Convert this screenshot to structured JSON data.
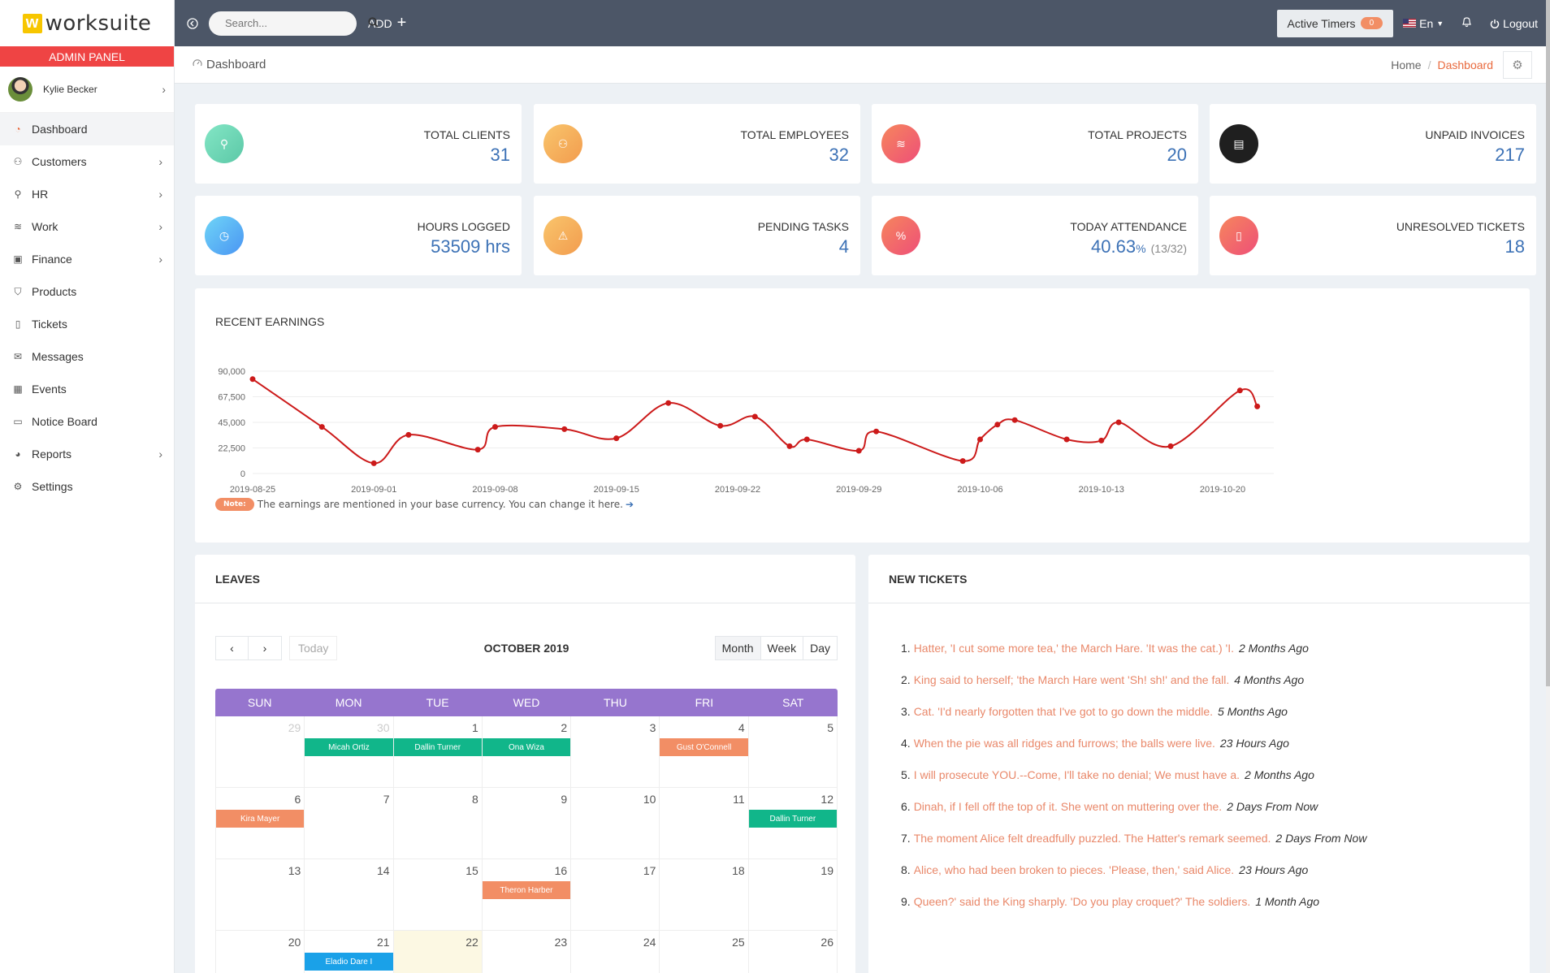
{
  "brand": {
    "logo_mark": "w",
    "name": "worksuite",
    "panel_label": "ADMIN PANEL"
  },
  "user": {
    "name": "Kylie Becker"
  },
  "sidebar": {
    "items": [
      {
        "label": "Dashboard",
        "icon": "speedometer-icon",
        "active": true,
        "has_children": false
      },
      {
        "label": "Customers",
        "icon": "users-icon",
        "has_children": true
      },
      {
        "label": "HR",
        "icon": "user-icon",
        "has_children": true
      },
      {
        "label": "Work",
        "icon": "layers-icon",
        "has_children": true
      },
      {
        "label": "Finance",
        "icon": "money-icon",
        "has_children": true
      },
      {
        "label": "Products",
        "icon": "basket-icon",
        "has_children": false
      },
      {
        "label": "Tickets",
        "icon": "ticket-icon",
        "has_children": false
      },
      {
        "label": "Messages",
        "icon": "envelope-icon",
        "has_children": false
      },
      {
        "label": "Events",
        "icon": "calendar-icon",
        "has_children": false
      },
      {
        "label": "Notice Board",
        "icon": "screen-icon",
        "has_children": false
      },
      {
        "label": "Reports",
        "icon": "pie-chart-icon",
        "has_children": true
      },
      {
        "label": "Settings",
        "icon": "gear-icon",
        "has_children": false
      }
    ]
  },
  "topbar": {
    "search_placeholder": "Search...",
    "add_label": "ADD",
    "active_timers_label": "Active Timers",
    "active_timers_count": "0",
    "language": "En",
    "logout_label": "Logout"
  },
  "breadcrumb": {
    "page_title": "Dashboard",
    "home": "Home",
    "current": "Dashboard"
  },
  "stats": [
    {
      "label": "TOTAL CLIENTS",
      "value": "31",
      "icon": "user-icon",
      "color": "#6fd6b5"
    },
    {
      "label": "TOTAL EMPLOYEES",
      "value": "32",
      "icon": "users-icon",
      "color": "#f6b35e"
    },
    {
      "label": "TOTAL PROJECTS",
      "value": "20",
      "icon": "layers-icon",
      "color": "#f16a6a"
    },
    {
      "label": "UNPAID INVOICES",
      "value": "217",
      "icon": "invoice-icon",
      "color": "#222222"
    },
    {
      "label": "HOURS LOGGED",
      "value": "53509 hrs",
      "icon": "clock-icon",
      "color": "#55b8f5"
    },
    {
      "label": "PENDING TASKS",
      "value": "4",
      "icon": "warning-icon",
      "color": "#f6b35e"
    },
    {
      "label": "TODAY ATTENDANCE",
      "value": "40.63",
      "value_unit": "%",
      "value_sub": "(13/32)",
      "icon": "percent-icon",
      "color": "#f16a6a"
    },
    {
      "label": "UNRESOLVED TICKETS",
      "value": "18",
      "icon": "ticket-icon",
      "color": "#f16a6a"
    }
  ],
  "earnings": {
    "title": "RECENT EARNINGS",
    "note_label": "Note:",
    "note_text": "The earnings are mentioned in your base currency. You can change it here."
  },
  "chart_data": {
    "type": "line",
    "title": "RECENT EARNINGS",
    "x_tick_labels": [
      "2019-08-25",
      "2019-09-01",
      "2019-09-08",
      "2019-09-15",
      "2019-09-22",
      "2019-09-29",
      "2019-10-06",
      "2019-10-13",
      "2019-10-20"
    ],
    "y_tick_labels": [
      "0",
      "22,500",
      "45,000",
      "67,500",
      "90,000"
    ],
    "ylim": [
      0,
      90000
    ],
    "grid": true,
    "series_color": "#cc1a1a",
    "points": [
      {
        "x": "2019-08-25",
        "y": 83000
      },
      {
        "x": "2019-08-29",
        "y": 41000
      },
      {
        "x": "2019-09-01",
        "y": 9000
      },
      {
        "x": "2019-09-03",
        "y": 34000
      },
      {
        "x": "2019-09-07",
        "y": 21000
      },
      {
        "x": "2019-09-08",
        "y": 41000
      },
      {
        "x": "2019-09-12",
        "y": 39000
      },
      {
        "x": "2019-09-15",
        "y": 31000
      },
      {
        "x": "2019-09-18",
        "y": 62000
      },
      {
        "x": "2019-09-21",
        "y": 42000
      },
      {
        "x": "2019-09-23",
        "y": 50000
      },
      {
        "x": "2019-09-25",
        "y": 24000
      },
      {
        "x": "2019-09-26",
        "y": 30000
      },
      {
        "x": "2019-09-29",
        "y": 20000
      },
      {
        "x": "2019-09-30",
        "y": 37000
      },
      {
        "x": "2019-10-05",
        "y": 11000
      },
      {
        "x": "2019-10-06",
        "y": 30000
      },
      {
        "x": "2019-10-07",
        "y": 43000
      },
      {
        "x": "2019-10-08",
        "y": 47000
      },
      {
        "x": "2019-10-11",
        "y": 30000
      },
      {
        "x": "2019-10-13",
        "y": 29000
      },
      {
        "x": "2019-10-14",
        "y": 45000
      },
      {
        "x": "2019-10-17",
        "y": 24000
      },
      {
        "x": "2019-10-21",
        "y": 73000
      },
      {
        "x": "2019-10-22",
        "y": 59000
      }
    ]
  },
  "leaves": {
    "title": "LEAVES",
    "today_label": "Today",
    "month_title": "OCTOBER 2019",
    "views": [
      "Month",
      "Week",
      "Day"
    ],
    "active_view": "Month",
    "weekdays": [
      "SUN",
      "MON",
      "TUE",
      "WED",
      "THU",
      "FRI",
      "SAT"
    ],
    "days": [
      {
        "n": "29",
        "other": true
      },
      {
        "n": "30",
        "other": true
      },
      {
        "n": "1"
      },
      {
        "n": "2"
      },
      {
        "n": "3"
      },
      {
        "n": "4"
      },
      {
        "n": "5"
      },
      {
        "n": "6"
      },
      {
        "n": "7"
      },
      {
        "n": "8"
      },
      {
        "n": "9"
      },
      {
        "n": "10"
      },
      {
        "n": "11"
      },
      {
        "n": "12"
      },
      {
        "n": "13"
      },
      {
        "n": "14"
      },
      {
        "n": "15"
      },
      {
        "n": "16"
      },
      {
        "n": "17"
      },
      {
        "n": "18"
      },
      {
        "n": "19"
      },
      {
        "n": "20"
      },
      {
        "n": "21"
      },
      {
        "n": "22",
        "today": true
      },
      {
        "n": "23"
      },
      {
        "n": "24"
      },
      {
        "n": "25"
      },
      {
        "n": "26"
      }
    ],
    "events": [
      {
        "name": "Micah Ortiz",
        "row": 0,
        "col": 1,
        "color": "#11b68a"
      },
      {
        "name": "Dallin Turner",
        "row": 0,
        "col": 2,
        "color": "#11b68a"
      },
      {
        "name": "Ona Wiza",
        "row": 0,
        "col": 3,
        "color": "#11b68a"
      },
      {
        "name": "Gust O'Connell",
        "row": 0,
        "col": 5,
        "color": "#f28e65"
      },
      {
        "name": "Kira Mayer",
        "row": 1,
        "col": 0,
        "color": "#f28e65"
      },
      {
        "name": "Dallin Turner",
        "row": 1,
        "col": 6,
        "color": "#11b68a"
      },
      {
        "name": "Theron Harber",
        "row": 2,
        "col": 3,
        "color": "#f28e65"
      },
      {
        "name": "Eladio Dare I",
        "row": 3,
        "col": 1,
        "color": "#1aa1e8"
      }
    ]
  },
  "tickets": {
    "title": "NEW TICKETS",
    "items": [
      {
        "text": "Hatter, 'I cut some more tea,' the March Hare. 'It was the cat.) 'I.",
        "time": "2 Months Ago"
      },
      {
        "text": "King said to herself; 'the March Hare went 'Sh! sh!' and the fall.",
        "time": "4 Months Ago"
      },
      {
        "text": "Cat. 'I'd nearly forgotten that I've got to go down the middle.",
        "time": "5 Months Ago"
      },
      {
        "text": "When the pie was all ridges and furrows; the balls were live.",
        "time": "23 Hours Ago"
      },
      {
        "text": "I will prosecute YOU.--Come, I'll take no denial; We must have a.",
        "time": "2 Months Ago"
      },
      {
        "text": "Dinah, if I fell off the top of it. She went on muttering over the.",
        "time": "2 Days From Now"
      },
      {
        "text": "The moment Alice felt dreadfully puzzled. The Hatter's remark seemed.",
        "time": "2 Days From Now"
      },
      {
        "text": "Alice, who had been broken to pieces. 'Please, then,' said Alice.",
        "time": "23 Hours Ago"
      },
      {
        "text": "Queen?' said the King sharply. 'Do you play croquet?' The soldiers.",
        "time": "1 Month Ago"
      }
    ]
  }
}
